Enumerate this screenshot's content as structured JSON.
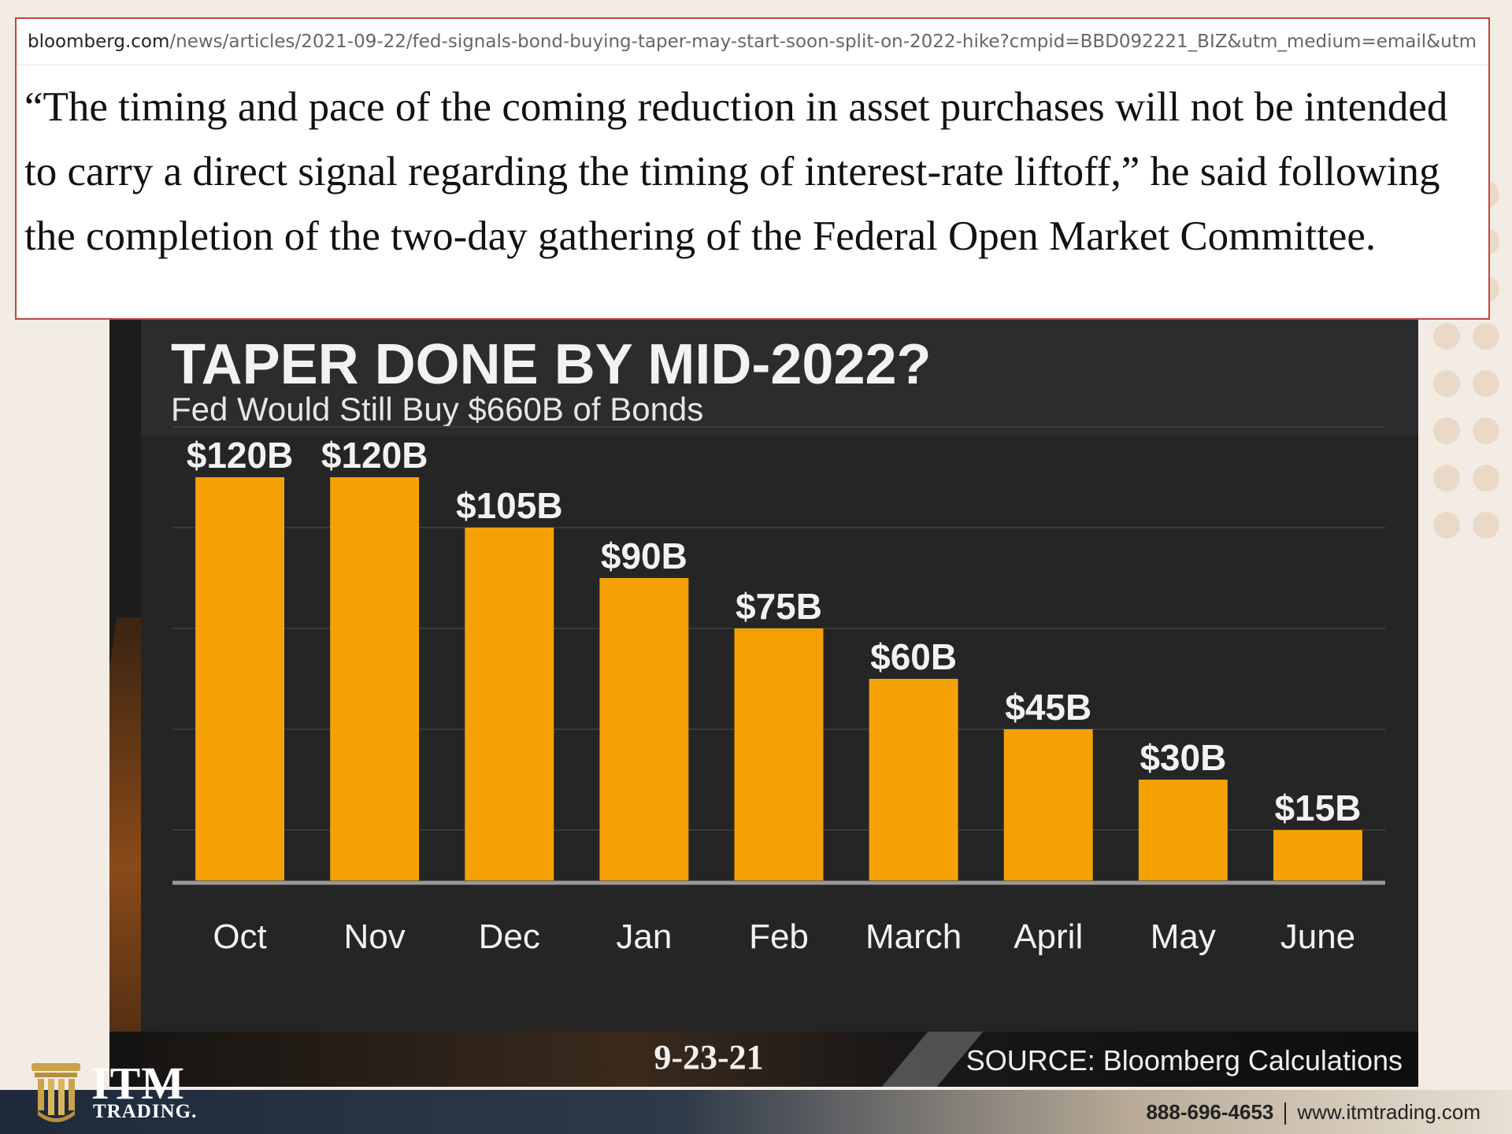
{
  "browser": {
    "url_domain": "bloomberg.com",
    "url_path": "/news/articles/2021-09-22/fed-signals-bond-buying-taper-may-start-soon-split-on-2022-hike?cmpid=BBD092221_BIZ&utm_medium=email&utm"
  },
  "quote": {
    "text": "“The timing and pace of the coming reduction in asset purchases will not be intended to carry a direct signal regarding the timing of interest-rate liftoff,” he said following the completion of the two-day gathering of the Federal Open Market Committee."
  },
  "chart_data": {
    "type": "bar",
    "title": "TAPER DONE BY MID-2022?",
    "subtitle": "Fed Would Still Buy $660B of Bonds",
    "categories": [
      "Oct",
      "Nov",
      "Dec",
      "Jan",
      "Feb",
      "March",
      "April",
      "May",
      "June"
    ],
    "values": [
      120,
      120,
      105,
      90,
      75,
      60,
      45,
      30,
      15
    ],
    "data_labels": [
      "$120B",
      "$120B",
      "$105B",
      "$90B",
      "$75B",
      "$60B",
      "$45B",
      "$30B",
      "$15B"
    ],
    "ylim": [
      0,
      135
    ],
    "grid": true,
    "bar_color": "#f5a104",
    "date": "9-23-21",
    "source": "SOURCE: Bloomberg Calculations"
  },
  "branding": {
    "logo_name": "ITM",
    "logo_sub": "TRADING.",
    "phone": "888-696-4653",
    "website": "www.itmtrading.com",
    "gold": "#c9a24b"
  }
}
